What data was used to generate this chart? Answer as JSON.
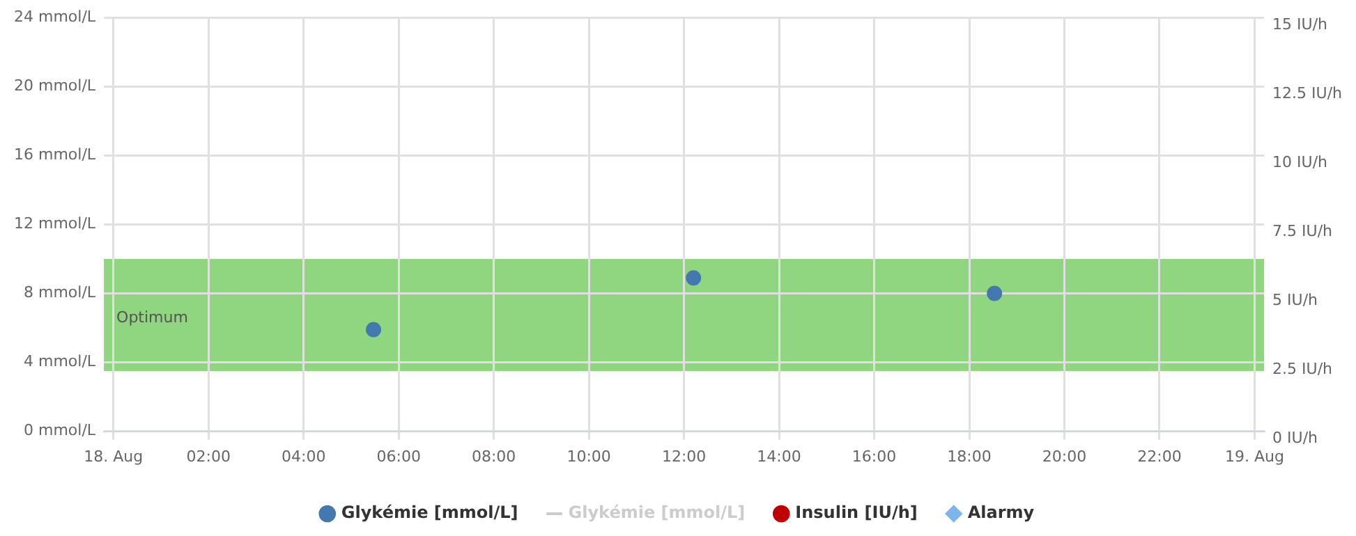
{
  "chart_data": {
    "type": "scatter",
    "series": [
      {
        "name": "Glykémie [mmol/L]",
        "color": "#4378b0",
        "marker": "circle",
        "x": [
          5.47,
          12.2,
          18.53
        ],
        "values": [
          5.9,
          8.9,
          8
        ]
      },
      {
        "name": "Glykémie [mmol/L]",
        "color": "#cccccc",
        "type": "line",
        "marker": "none"
      },
      {
        "name": "Insulin [IU/h]",
        "color": "#c00000",
        "type": "scatter",
        "marker": "circle"
      },
      {
        "name": "Alarmy",
        "color": "#7cb5ec",
        "type": "scatter",
        "marker": "diamond"
      }
    ],
    "xlim": [
      -0.2,
      24.2
    ],
    "xticks": [
      {
        "value": 0,
        "label": "18. Aug"
      },
      {
        "value": 2,
        "label": "02:00"
      },
      {
        "value": 4,
        "label": "04:00"
      },
      {
        "value": 6,
        "label": "06:00"
      },
      {
        "value": 8,
        "label": "08:00"
      },
      {
        "value": 10,
        "label": "10:00"
      },
      {
        "value": 12,
        "label": "12:00"
      },
      {
        "value": 14,
        "label": "14:00"
      },
      {
        "value": 16,
        "label": "16:00"
      },
      {
        "value": 18,
        "label": "18:00"
      },
      {
        "value": 20,
        "label": "20:00"
      },
      {
        "value": 22,
        "label": "22:00"
      },
      {
        "value": 24,
        "label": "19. Aug"
      }
    ],
    "ylim": [
      0,
      24
    ],
    "yticks": [
      {
        "value": 0,
        "label": "0 mmol/L"
      },
      {
        "value": 4,
        "label": "4 mmol/L"
      },
      {
        "value": 8,
        "label": "8 mmol/L"
      },
      {
        "value": 12,
        "label": "12 mmol/L"
      },
      {
        "value": 16,
        "label": "16 mmol/L"
      },
      {
        "value": 20,
        "label": "20 mmol/L"
      },
      {
        "value": 24,
        "label": "24 mmol/L"
      }
    ],
    "y2lim": [
      0,
      15
    ],
    "y2ticks": [
      {
        "value": 0,
        "label": "0 IU/h"
      },
      {
        "value": 2.5,
        "label": "2.5 IU/h"
      },
      {
        "value": 5,
        "label": "5 IU/h"
      },
      {
        "value": 7.5,
        "label": "7.5 IU/h"
      },
      {
        "value": 10,
        "label": "10 IU/h"
      },
      {
        "value": 12.5,
        "label": "12.5 IU/h"
      },
      {
        "value": 15,
        "label": "15 IU/h"
      }
    ],
    "bands": [
      {
        "axis": "y",
        "from": 3.5,
        "to": 10,
        "label": "Optimum",
        "color": "#90d580"
      }
    ],
    "grid": true,
    "legend": "bottom"
  }
}
